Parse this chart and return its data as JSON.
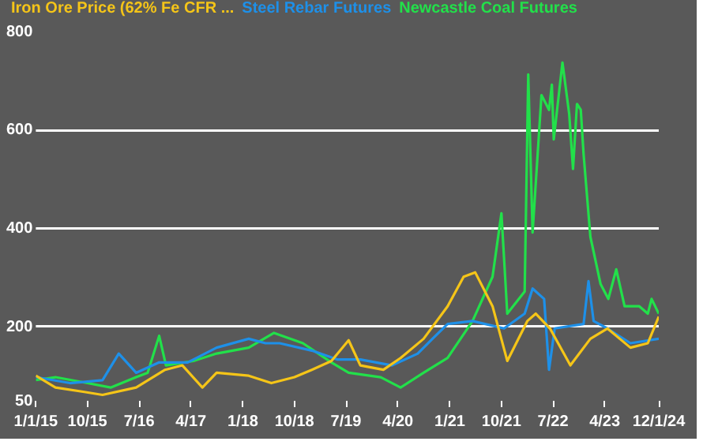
{
  "chart_data": {
    "type": "line",
    "legend": "top",
    "grid": "y",
    "marker": "none",
    "line_style": "solid",
    "xlim": [
      "2015-01-01",
      "2024-01-12"
    ],
    "xticks": [
      {
        "value": "2015-01-01",
        "label": "1/1/15"
      },
      {
        "value": "2015-10-01",
        "label": "10/15"
      },
      {
        "value": "2016-07-01",
        "label": "7/16"
      },
      {
        "value": "2017-04-01",
        "label": "4/17"
      },
      {
        "value": "2018-01-01",
        "label": "1/18"
      },
      {
        "value": "2018-10-01",
        "label": "10/18"
      },
      {
        "value": "2019-07-01",
        "label": "7/19"
      },
      {
        "value": "2020-04-01",
        "label": "4/20"
      },
      {
        "value": "2021-01-01",
        "label": "1/21"
      },
      {
        "value": "2021-10-01",
        "label": "10/21"
      },
      {
        "value": "2022-07-01",
        "label": "7/22"
      },
      {
        "value": "2023-04-01",
        "label": "4/23"
      },
      {
        "value": "2024-01-12",
        "label": "12/1/24"
      }
    ],
    "ylim": [
      50,
      800
    ],
    "yticks": [
      50,
      200,
      400,
      600,
      800
    ],
    "series": [
      {
        "name": "Iron Ore Price (62% Fe CFR ...",
        "color": "#f5c518",
        "x": [
          "2015-01-01",
          "2015-04-15",
          "2015-09-15",
          "2015-12-20",
          "2016-06-15",
          "2016-11-15",
          "2017-02-15",
          "2017-06-01",
          "2017-08-15",
          "2018-02-01",
          "2018-06-01",
          "2018-10-01",
          "2019-01-01",
          "2019-04-15",
          "2019-07-15",
          "2019-09-15",
          "2020-01-15",
          "2020-04-15",
          "2020-08-15",
          "2020-12-20",
          "2021-03-15",
          "2021-05-15",
          "2021-08-15",
          "2021-11-01",
          "2022-02-15",
          "2022-04-01",
          "2022-06-15",
          "2022-10-01",
          "2023-01-15",
          "2023-04-15",
          "2023-08-15",
          "2023-11-15",
          "2024-01-12"
        ],
        "values": [
          101,
          77,
          68,
          62,
          77,
          113,
          122,
          77,
          107,
          101,
          86,
          98,
          113,
          131,
          173,
          122,
          113,
          137,
          176,
          242,
          302,
          311,
          242,
          131,
          212,
          227,
          197,
          122,
          176,
          197,
          158,
          167,
          221
        ]
      },
      {
        "name": "Steel Rebar Futures",
        "color": "#1e90e8",
        "x": [
          "2015-01-01",
          "2015-07-01",
          "2015-12-20",
          "2016-03-15",
          "2016-06-15",
          "2016-10-15",
          "2017-03-15",
          "2017-08-15",
          "2018-02-01",
          "2018-05-01",
          "2018-07-15",
          "2019-01-01",
          "2019-05-15",
          "2019-09-15",
          "2020-03-01",
          "2020-07-15",
          "2020-10-01",
          "2020-12-20",
          "2021-05-01",
          "2021-10-15",
          "2022-02-01",
          "2022-03-15",
          "2022-05-15",
          "2022-06-10",
          "2022-07-10",
          "2022-12-10",
          "2023-01-05",
          "2023-02-01",
          "2023-04-15",
          "2023-08-15",
          "2024-01-12"
        ],
        "values": [
          98,
          86,
          92,
          146,
          107,
          128,
          128,
          158,
          176,
          167,
          167,
          152,
          134,
          134,
          122,
          146,
          176,
          206,
          212,
          197,
          227,
          278,
          257,
          113,
          197,
          206,
          293,
          212,
          197,
          167,
          176
        ]
      },
      {
        "name": "Newcastle Coal Futures",
        "color": "#22e04a",
        "x": [
          "2015-01-01",
          "2015-04-15",
          "2015-10-01",
          "2016-02-01",
          "2016-06-15",
          "2016-08-15",
          "2016-10-15",
          "2016-11-20",
          "2017-04-15",
          "2017-08-15",
          "2018-02-01",
          "2018-06-15",
          "2018-11-15",
          "2019-04-15",
          "2019-07-15",
          "2020-01-01",
          "2020-04-15",
          "2020-08-15",
          "2020-12-20",
          "2021-05-01",
          "2021-08-15",
          "2021-10-01",
          "2021-11-01",
          "2022-02-01",
          "2022-02-20",
          "2022-03-15",
          "2022-05-01",
          "2022-06-10",
          "2022-06-25",
          "2022-07-05",
          "2022-08-20",
          "2022-09-25",
          "2022-10-15",
          "2022-11-05",
          "2022-11-25",
          "2022-12-10",
          "2023-01-15",
          "2023-03-10",
          "2023-04-20",
          "2023-06-01",
          "2023-07-15",
          "2023-10-01",
          "2023-11-15",
          "2023-12-05",
          "2024-01-12"
        ],
        "values": [
          92,
          98,
          86,
          77,
          98,
          107,
          182,
          122,
          131,
          146,
          158,
          188,
          167,
          128,
          107,
          98,
          77,
          107,
          137,
          212,
          302,
          431,
          227,
          272,
          713,
          392,
          671,
          641,
          692,
          581,
          737,
          632,
          521,
          653,
          641,
          551,
          383,
          287,
          257,
          317,
          242,
          242,
          227,
          257,
          227
        ]
      }
    ]
  }
}
